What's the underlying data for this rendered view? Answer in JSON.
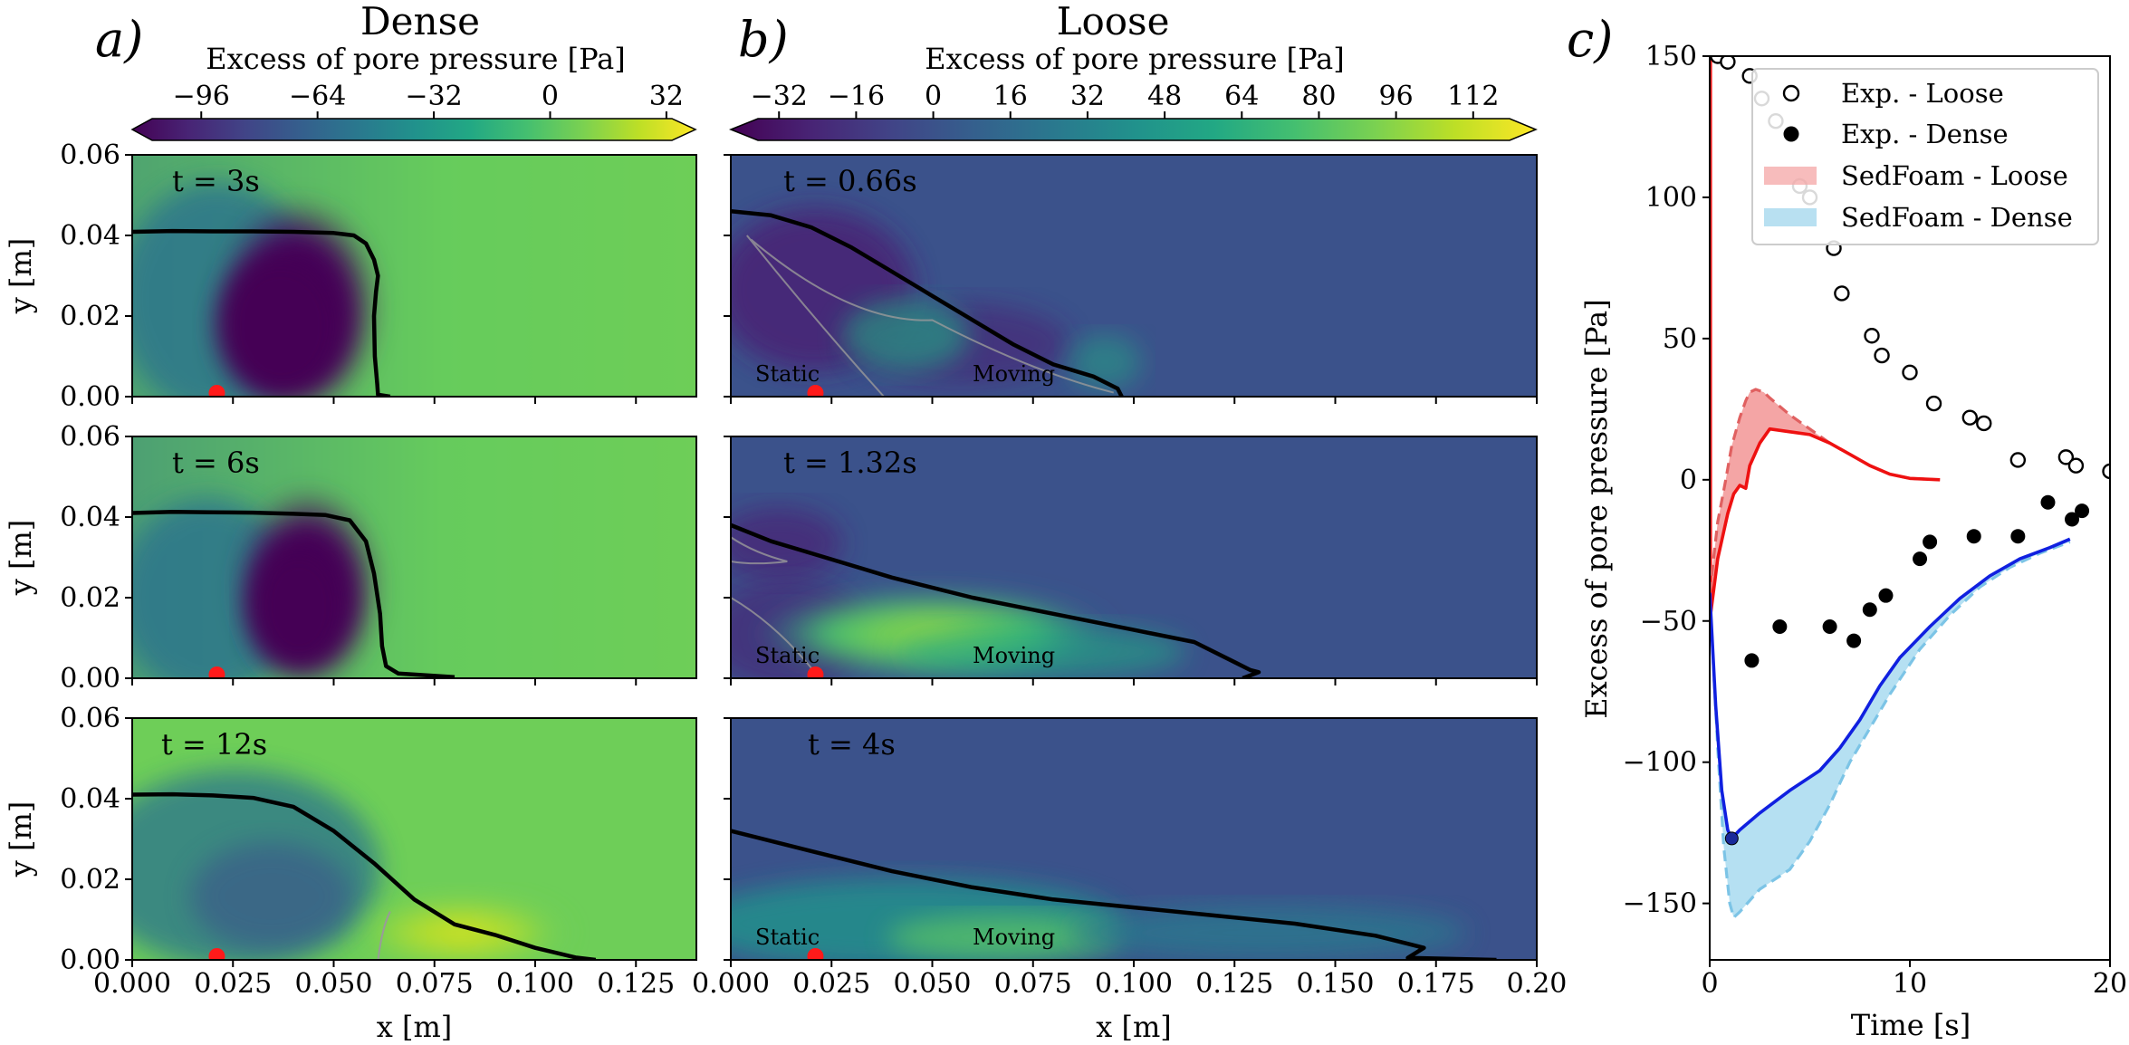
{
  "panel_a": {
    "label": "a)",
    "title": "Dense",
    "colorbar": {
      "label": "Excess of pore pressure [Pa]",
      "min": -115,
      "max": 40,
      "ticks": [
        -96,
        -64,
        -32,
        0,
        32
      ],
      "tick_labels": [
        "−96",
        "−64",
        "−32",
        "0",
        "32"
      ]
    },
    "x_range": [
      0,
      0.14
    ],
    "x_ticks": [
      0.0,
      0.025,
      0.05,
      0.075,
      0.1,
      0.125
    ],
    "x_tick_labels": [
      "0.000",
      "0.025",
      "0.050",
      "0.075",
      "0.100",
      "0.125"
    ],
    "xlabel": "x [m]",
    "y_range": [
      0,
      0.06
    ],
    "y_ticks": [
      0.0,
      0.02,
      0.04,
      0.06
    ],
    "y_tick_labels": [
      "0.00",
      "0.02",
      "0.04",
      "0.06"
    ],
    "ylabel": "y [m]",
    "sensor_x": 0.021,
    "subplots": [
      {
        "time_label": "t = 3s",
        "interface": [
          [
            0,
            0.0409
          ],
          [
            0.01,
            0.0411
          ],
          [
            0.02,
            0.041
          ],
          [
            0.03,
            0.041
          ],
          [
            0.04,
            0.0409
          ],
          [
            0.05,
            0.0406
          ],
          [
            0.055,
            0.04
          ],
          [
            0.058,
            0.038
          ],
          [
            0.06,
            0.034
          ],
          [
            0.061,
            0.03
          ],
          [
            0.0605,
            0.026
          ],
          [
            0.06,
            0.02
          ],
          [
            0.0602,
            0.01
          ],
          [
            0.0608,
            0.003
          ],
          [
            0.061,
            0.0005
          ],
          [
            0.064,
            0.0
          ]
        ]
      },
      {
        "time_label": "t = 6s",
        "interface": [
          [
            0,
            0.041
          ],
          [
            0.01,
            0.0413
          ],
          [
            0.02,
            0.0412
          ],
          [
            0.03,
            0.0411
          ],
          [
            0.04,
            0.0408
          ],
          [
            0.048,
            0.0405
          ],
          [
            0.054,
            0.0392
          ],
          [
            0.058,
            0.034
          ],
          [
            0.06,
            0.026
          ],
          [
            0.0615,
            0.016
          ],
          [
            0.062,
            0.008
          ],
          [
            0.063,
            0.003
          ],
          [
            0.066,
            0.0012
          ],
          [
            0.08,
            0.0003
          ]
        ]
      },
      {
        "time_label": "t = 12s",
        "interface": [
          [
            0,
            0.041
          ],
          [
            0.01,
            0.0411
          ],
          [
            0.02,
            0.0408
          ],
          [
            0.03,
            0.0402
          ],
          [
            0.04,
            0.038
          ],
          [
            0.05,
            0.032
          ],
          [
            0.06,
            0.024
          ],
          [
            0.07,
            0.015
          ],
          [
            0.08,
            0.0088
          ],
          [
            0.09,
            0.0062
          ],
          [
            0.1,
            0.003
          ],
          [
            0.11,
            0.0006
          ],
          [
            0.115,
            0.0
          ]
        ]
      }
    ]
  },
  "panel_b": {
    "label": "b)",
    "title": "Loose",
    "colorbar": {
      "label": "Excess of pore pressure [Pa]",
      "min": -42,
      "max": 125,
      "ticks": [
        -32,
        -16,
        0,
        16,
        32,
        48,
        64,
        80,
        96,
        112
      ],
      "tick_labels": [
        "−32",
        "−16",
        "0",
        "16",
        "32",
        "48",
        "64",
        "80",
        "96",
        "112"
      ]
    },
    "x_range": [
      0,
      0.2
    ],
    "x_ticks": [
      0.0,
      0.025,
      0.05,
      0.075,
      0.1,
      0.125,
      0.15,
      0.175,
      0.2
    ],
    "x_tick_labels": [
      "0.000",
      "0.025",
      "0.050",
      "0.075",
      "0.100",
      "0.125",
      "0.150",
      "0.175",
      "0.20"
    ],
    "xlabel": "x [m]",
    "y_range": [
      0,
      0.06
    ],
    "sensor_x": 0.021,
    "static_label": "Static",
    "moving_label": "Moving",
    "subplots": [
      {
        "time_label": "t = 0.66s",
        "interface": [
          [
            0,
            0.046
          ],
          [
            0.01,
            0.045
          ],
          [
            0.02,
            0.042
          ],
          [
            0.03,
            0.037
          ],
          [
            0.04,
            0.031
          ],
          [
            0.05,
            0.025
          ],
          [
            0.06,
            0.019
          ],
          [
            0.07,
            0.013
          ],
          [
            0.08,
            0.008
          ],
          [
            0.09,
            0.005
          ],
          [
            0.096,
            0.002
          ],
          [
            0.097,
            0.0
          ]
        ]
      },
      {
        "time_label": "t = 1.32s",
        "interface": [
          [
            0,
            0.038
          ],
          [
            0.01,
            0.034
          ],
          [
            0.02,
            0.031
          ],
          [
            0.04,
            0.025
          ],
          [
            0.06,
            0.02
          ],
          [
            0.08,
            0.016
          ],
          [
            0.1,
            0.012
          ],
          [
            0.115,
            0.009
          ],
          [
            0.125,
            0.004
          ],
          [
            0.129,
            0.002
          ],
          [
            0.131,
            0.0015
          ],
          [
            0.127,
            0.0
          ]
        ]
      },
      {
        "time_label": "t = 4s",
        "interface": [
          [
            0,
            0.032
          ],
          [
            0.02,
            0.027
          ],
          [
            0.04,
            0.022
          ],
          [
            0.06,
            0.018
          ],
          [
            0.08,
            0.015
          ],
          [
            0.1,
            0.013
          ],
          [
            0.12,
            0.011
          ],
          [
            0.14,
            0.009
          ],
          [
            0.16,
            0.006
          ],
          [
            0.168,
            0.004
          ],
          [
            0.172,
            0.003
          ],
          [
            0.168,
            0.0005
          ],
          [
            0.19,
            0.0
          ]
        ]
      }
    ]
  },
  "panel_c": {
    "label": "c)",
    "xlabel": "Time [s]",
    "ylabel": "Excess of pore pressure [Pa]",
    "x_range": [
      0,
      20
    ],
    "y_range": [
      -170,
      150
    ],
    "x_ticks": [
      0,
      10,
      20
    ],
    "x_tick_labels": [
      "0",
      "10",
      "20"
    ],
    "y_ticks": [
      -150,
      -100,
      -50,
      0,
      50,
      100,
      150
    ],
    "y_tick_labels": [
      "−150",
      "−100",
      "−50",
      "0",
      "50",
      "100",
      "150"
    ],
    "legend": [
      {
        "label": "Exp. - Loose"
      },
      {
        "label": "Exp. - Dense"
      },
      {
        "label": "SedFoam - Loose"
      },
      {
        "label": "SedFoam - Dense"
      }
    ],
    "exp_loose": [
      [
        0.4,
        150
      ],
      [
        0.9,
        148
      ],
      [
        2.0,
        143
      ],
      [
        2.6,
        135
      ],
      [
        3.3,
        127
      ],
      [
        4.5,
        104
      ],
      [
        5.0,
        100
      ],
      [
        6.2,
        82
      ],
      [
        6.6,
        66
      ],
      [
        8.1,
        51
      ],
      [
        8.6,
        44
      ],
      [
        10.0,
        38
      ],
      [
        11.2,
        27
      ],
      [
        13.0,
        22
      ],
      [
        13.7,
        20
      ],
      [
        15.4,
        7
      ],
      [
        17.8,
        8
      ],
      [
        18.3,
        5
      ],
      [
        20,
        3
      ]
    ],
    "exp_dense": [
      [
        2.1,
        -64
      ],
      [
        3.5,
        -52
      ],
      [
        6.0,
        -52
      ],
      [
        7.2,
        -57
      ],
      [
        8.0,
        -46
      ],
      [
        8.8,
        -41
      ],
      [
        10.5,
        -28
      ],
      [
        11.0,
        -22
      ],
      [
        13.2,
        -20
      ],
      [
        15.4,
        -20
      ],
      [
        16.9,
        -8
      ],
      [
        18.1,
        -14
      ],
      [
        18.6,
        -11
      ]
    ],
    "sedfoam_loose_solid": [
      [
        0,
        -50
      ],
      [
        0.4,
        -28
      ],
      [
        0.9,
        -12
      ],
      [
        1.2,
        -5
      ],
      [
        1.5,
        -2
      ],
      [
        1.8,
        -3
      ],
      [
        2.0,
        5
      ],
      [
        2.5,
        13
      ],
      [
        3.0,
        18
      ],
      [
        4.0,
        17
      ],
      [
        5.0,
        16
      ],
      [
        6.0,
        13
      ],
      [
        7.0,
        9
      ],
      [
        8.0,
        5
      ],
      [
        9.0,
        2
      ],
      [
        10.0,
        0.5
      ],
      [
        11.5,
        0
      ]
    ],
    "sedfoam_loose_dashed": [
      [
        0,
        -40
      ],
      [
        0.4,
        -15
      ],
      [
        0.8,
        0
      ],
      [
        1.1,
        12
      ],
      [
        1.5,
        22
      ],
      [
        1.8,
        28
      ],
      [
        2.0,
        31
      ],
      [
        2.3,
        32
      ],
      [
        2.7,
        31
      ],
      [
        3.0,
        29
      ],
      [
        4.0,
        23
      ],
      [
        5.0,
        18
      ],
      [
        6.0,
        13
      ],
      [
        7.0,
        9
      ],
      [
        8.0,
        5
      ],
      [
        9.0,
        2
      ],
      [
        10.0,
        0.5
      ],
      [
        11.5,
        0
      ]
    ],
    "sedfoam_dense_solid": [
      [
        0,
        -40
      ],
      [
        0.3,
        -80
      ],
      [
        0.6,
        -110
      ],
      [
        0.9,
        -124
      ],
      [
        1.1,
        -127
      ],
      [
        1.5,
        -124
      ],
      [
        2.5,
        -118
      ],
      [
        4.0,
        -110
      ],
      [
        5.5,
        -103
      ],
      [
        6.5,
        -95
      ],
      [
        7.5,
        -85
      ],
      [
        8.5,
        -73
      ],
      [
        9.5,
        -63
      ],
      [
        11.0,
        -52
      ],
      [
        12.5,
        -42
      ],
      [
        14.0,
        -34
      ],
      [
        15.5,
        -28
      ],
      [
        17.0,
        -24
      ],
      [
        18.0,
        -21
      ]
    ],
    "sedfoam_dense_dashed": [
      [
        0,
        -40
      ],
      [
        0.4,
        -95
      ],
      [
        0.7,
        -130
      ],
      [
        1.0,
        -150
      ],
      [
        1.2,
        -155
      ],
      [
        1.5,
        -153
      ],
      [
        2.5,
        -145
      ],
      [
        4.0,
        -138
      ],
      [
        5.0,
        -128
      ],
      [
        6.0,
        -115
      ],
      [
        7.0,
        -100
      ],
      [
        8.0,
        -88
      ],
      [
        9.0,
        -76
      ],
      [
        10.5,
        -60
      ],
      [
        12.0,
        -48
      ],
      [
        13.5,
        -38
      ],
      [
        15.0,
        -31
      ],
      [
        16.5,
        -26
      ],
      [
        18.0,
        -22
      ]
    ],
    "marker": [
      1.1,
      -127
    ]
  }
}
